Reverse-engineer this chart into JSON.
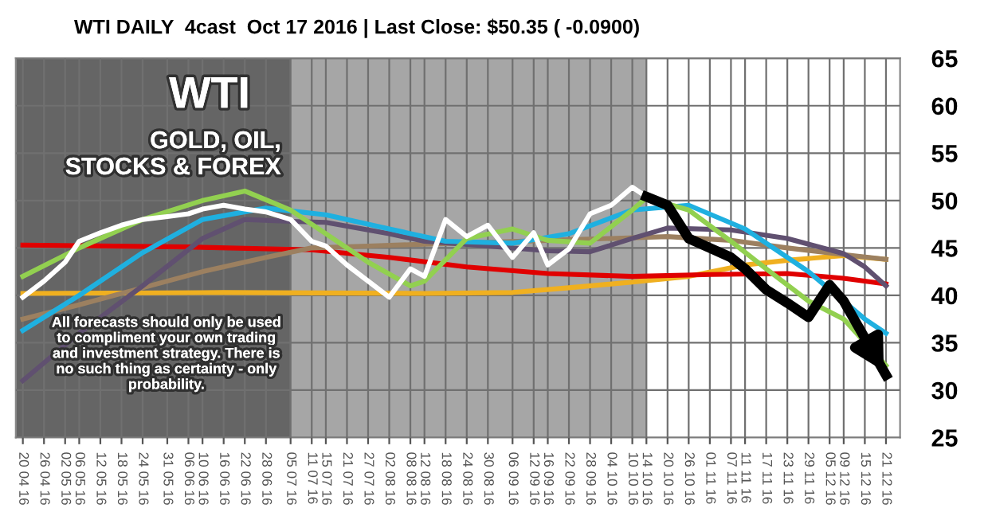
{
  "chart_data": {
    "type": "line",
    "title": "WTI DAILY  4cast  Oct 17 2016 | Last Close: $50.35 ( -0.0900)",
    "annotations": [
      "WTI",
      "GOLD, OIL,\nSTOCKS & FOREX",
      "All forecasts should only be used\nto compliment your own trading\nand investment strategy. There is\nno such thing as certainty - only\nprobability."
    ],
    "xlim": [
      "2016-04-18",
      "2016-12-25"
    ],
    "xticks": [
      {
        "value": "2016-04-20",
        "label": "20 04 16"
      },
      {
        "value": "2016-04-26",
        "label": "26 04 16"
      },
      {
        "value": "2016-05-02",
        "label": "02 05 16"
      },
      {
        "value": "2016-05-06",
        "label": "06 05 16"
      },
      {
        "value": "2016-05-12",
        "label": "12 05 16"
      },
      {
        "value": "2016-05-18",
        "label": "18 05 16"
      },
      {
        "value": "2016-05-24",
        "label": "24 05 16"
      },
      {
        "value": "2016-05-31",
        "label": "31 05 16"
      },
      {
        "value": "2016-06-06",
        "label": "06 06 16"
      },
      {
        "value": "2016-06-10",
        "label": "10 06 16"
      },
      {
        "value": "2016-06-16",
        "label": "16 06 16"
      },
      {
        "value": "2016-06-22",
        "label": "22 06 16"
      },
      {
        "value": "2016-06-28",
        "label": "28 06 16"
      },
      {
        "value": "2016-07-05",
        "label": "05 07 16"
      },
      {
        "value": "2016-07-11",
        "label": "11 07 16"
      },
      {
        "value": "2016-07-15",
        "label": "15 07 16"
      },
      {
        "value": "2016-07-21",
        "label": "21 07 16"
      },
      {
        "value": "2016-07-27",
        "label": "27 07 16"
      },
      {
        "value": "2016-08-02",
        "label": "02 08 16"
      },
      {
        "value": "2016-08-08",
        "label": "08 08 16"
      },
      {
        "value": "2016-08-12",
        "label": "12 08 16"
      },
      {
        "value": "2016-08-18",
        "label": "18 08 16"
      },
      {
        "value": "2016-08-24",
        "label": "24 08 16"
      },
      {
        "value": "2016-08-30",
        "label": "30 08 16"
      },
      {
        "value": "2016-09-06",
        "label": "06 09 16"
      },
      {
        "value": "2016-09-12",
        "label": "12 09 16"
      },
      {
        "value": "2016-09-16",
        "label": "16 09 16"
      },
      {
        "value": "2016-09-22",
        "label": "22 09 16"
      },
      {
        "value": "2016-09-28",
        "label": "28 09 16"
      },
      {
        "value": "2016-10-04",
        "label": "04 10 16"
      },
      {
        "value": "2016-10-10",
        "label": "10 10 16"
      },
      {
        "value": "2016-10-14",
        "label": "14 10 16"
      },
      {
        "value": "2016-10-20",
        "label": "20 10 16"
      },
      {
        "value": "2016-10-26",
        "label": "26 10 16"
      },
      {
        "value": "2016-11-01",
        "label": "01 11 16"
      },
      {
        "value": "2016-11-07",
        "label": "07 11 16"
      },
      {
        "value": "2016-11-11",
        "label": "11 11 16"
      },
      {
        "value": "2016-11-17",
        "label": "17 11 16"
      },
      {
        "value": "2016-11-23",
        "label": "23 11 16"
      },
      {
        "value": "2016-11-29",
        "label": "29 11 16"
      },
      {
        "value": "2016-12-05",
        "label": "05 12 16"
      },
      {
        "value": "2016-12-09",
        "label": "09 12 16"
      },
      {
        "value": "2016-12-15",
        "label": "15 12 16"
      },
      {
        "value": "2016-12-21",
        "label": "21 12 16"
      }
    ],
    "ylim": [
      25,
      65
    ],
    "yticks": [
      25,
      30,
      35,
      40,
      45,
      50,
      55,
      60,
      65
    ],
    "grid": true,
    "bands": [
      {
        "axis": "x",
        "from": "2016-04-18",
        "to": "2016-10-14",
        "label": null,
        "color": "#a6a6a6"
      }
    ],
    "series": [
      {
        "color": "#f0b020",
        "x": [
          "2016-04-20",
          "2016-06-16",
          "2016-08-12",
          "2016-09-06",
          "2016-09-22",
          "2016-10-10",
          "2016-10-26",
          "2016-11-11",
          "2016-11-23",
          "2016-12-09",
          "2016-12-21"
        ],
        "values": [
          40.2,
          40.3,
          40.2,
          40.3,
          40.8,
          41.4,
          42,
          43.2,
          43.7,
          44.2,
          43.8
        ]
      },
      {
        "color": "#e00000",
        "x": [
          "2016-04-20",
          "2016-06-06",
          "2016-07-11",
          "2016-08-02",
          "2016-08-24",
          "2016-09-16",
          "2016-10-10",
          "2016-11-01",
          "2016-11-23",
          "2016-12-09",
          "2016-12-21"
        ],
        "values": [
          45.3,
          45.1,
          44.8,
          44,
          43,
          42.3,
          42,
          42.2,
          42.3,
          41.8,
          41.2
        ]
      },
      {
        "color": "#9c8060",
        "x": [
          "2016-04-20",
          "2016-05-06",
          "2016-05-24",
          "2016-06-10",
          "2016-06-28",
          "2016-07-11",
          "2016-07-27",
          "2016-08-12",
          "2016-08-30",
          "2016-09-16",
          "2016-10-04",
          "2016-10-20",
          "2016-11-07",
          "2016-11-23",
          "2016-12-09",
          "2016-12-21"
        ],
        "values": [
          37.5,
          39,
          40.8,
          42.5,
          44,
          45,
          45.2,
          45.4,
          45.6,
          45.8,
          46,
          46.2,
          45.8,
          45,
          44.3,
          43.8
        ]
      },
      {
        "color": "#605070",
        "x": [
          "2016-04-20",
          "2016-05-06",
          "2016-05-24",
          "2016-06-10",
          "2016-06-22",
          "2016-07-05",
          "2016-07-15",
          "2016-08-02",
          "2016-08-12",
          "2016-08-30",
          "2016-09-16",
          "2016-09-28",
          "2016-10-10",
          "2016-10-20",
          "2016-11-07",
          "2016-11-23",
          "2016-12-09",
          "2016-12-15",
          "2016-12-21"
        ],
        "values": [
          31,
          36,
          41,
          46,
          48,
          47.8,
          47.7,
          46.5,
          45.7,
          45.2,
          44.7,
          44.6,
          46,
          47.1,
          46.9,
          46,
          44.4,
          43,
          41
        ]
      },
      {
        "color": "#1fb0e0",
        "x": [
          "2016-04-20",
          "2016-05-06",
          "2016-05-24",
          "2016-06-10",
          "2016-06-28",
          "2016-07-15",
          "2016-08-02",
          "2016-08-18",
          "2016-09-06",
          "2016-09-22",
          "2016-10-10",
          "2016-10-26",
          "2016-11-11",
          "2016-11-29",
          "2016-12-15",
          "2016-12-21"
        ],
        "values": [
          36.3,
          40,
          44.5,
          48,
          49.2,
          48.5,
          47,
          45.7,
          45.5,
          46.5,
          49,
          49.5,
          47,
          42.5,
          37.5,
          36
        ]
      },
      {
        "color": "#92d050",
        "x": [
          "2016-04-20",
          "2016-05-06",
          "2016-05-24",
          "2016-06-10",
          "2016-06-22",
          "2016-07-05",
          "2016-07-15",
          "2016-07-27",
          "2016-08-08",
          "2016-08-12",
          "2016-08-24",
          "2016-09-06",
          "2016-09-16",
          "2016-09-28",
          "2016-10-10",
          "2016-10-14",
          "2016-10-26",
          "2016-11-07",
          "2016-11-17",
          "2016-11-29",
          "2016-12-09",
          "2016-12-21"
        ],
        "values": [
          42,
          45,
          48,
          50,
          51,
          49,
          46.5,
          43.5,
          41,
          41.5,
          46,
          47,
          45.8,
          45.5,
          49,
          50.3,
          49,
          45.7,
          42.8,
          39.4,
          37.5,
          32.6
        ]
      },
      {
        "color": "#ffffff",
        "x": [
          "2016-04-20",
          "2016-04-26",
          "2016-05-02",
          "2016-05-06",
          "2016-05-12",
          "2016-05-18",
          "2016-05-24",
          "2016-05-31",
          "2016-06-06",
          "2016-06-10",
          "2016-06-16",
          "2016-06-22",
          "2016-06-28",
          "2016-07-05",
          "2016-07-11",
          "2016-07-15",
          "2016-07-21",
          "2016-07-27",
          "2016-08-02",
          "2016-08-08",
          "2016-08-12",
          "2016-08-18",
          "2016-08-24",
          "2016-08-30",
          "2016-09-06",
          "2016-09-12",
          "2016-09-16",
          "2016-09-22",
          "2016-09-28",
          "2016-10-04",
          "2016-10-10",
          "2016-10-14"
        ],
        "values": [
          39.8,
          41.5,
          43.5,
          45.7,
          46.6,
          47.4,
          48,
          48.3,
          48.6,
          49.1,
          49.5,
          49.1,
          48.8,
          48,
          45.7,
          45.2,
          43.2,
          41.5,
          39.8,
          42.8,
          42,
          48,
          46.2,
          47.4,
          44,
          46.6,
          43.2,
          44.9,
          48.6,
          49.5,
          51.4,
          50.4
        ]
      },
      {
        "color": "#000000",
        "x": [
          "2016-10-14",
          "2016-10-20",
          "2016-10-26",
          "2016-11-01",
          "2016-11-07",
          "2016-11-11",
          "2016-11-17",
          "2016-11-23",
          "2016-11-29",
          "2016-12-05",
          "2016-12-09",
          "2016-12-15",
          "2016-12-21"
        ],
        "values": [
          50.4,
          49.5,
          46,
          45,
          44,
          42.8,
          40.6,
          39.2,
          37.7,
          41.1,
          39.4,
          35.5,
          31.6
        ]
      }
    ]
  }
}
